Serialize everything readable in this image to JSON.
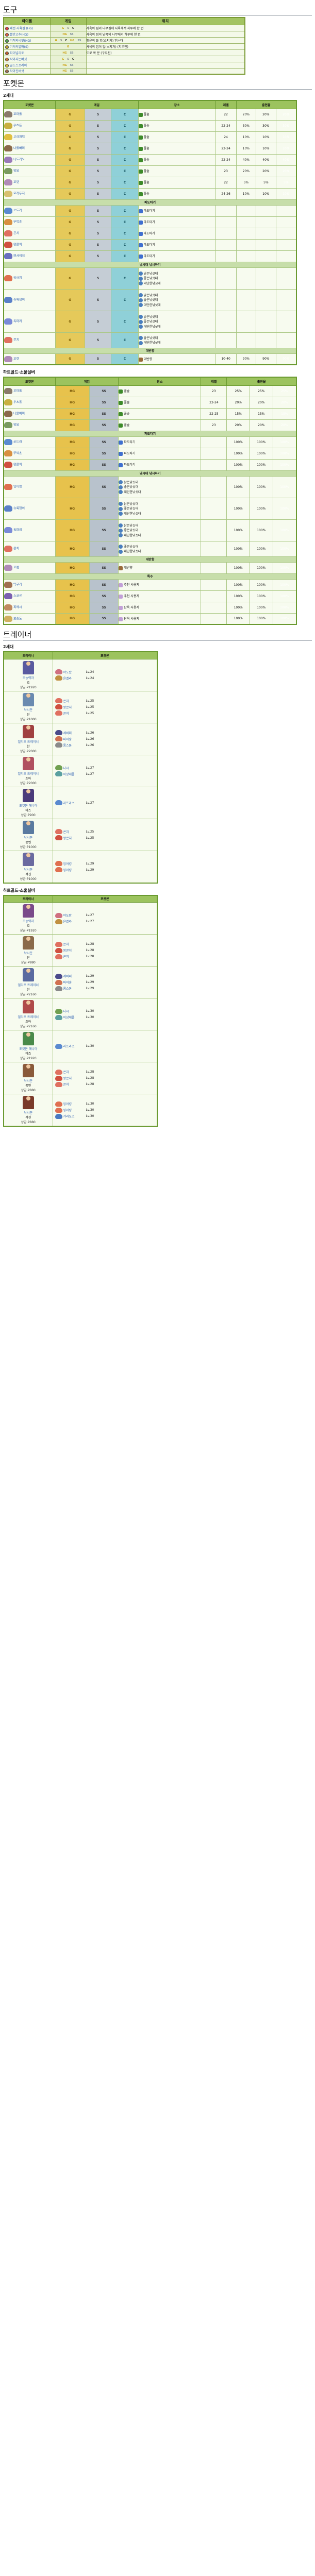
{
  "sections": {
    "items_title": "도구",
    "pokemon_title": "포켓몬",
    "trainers_title": "트레이너",
    "gen2": "2세대",
    "gen4": "하트골드·소울실버"
  },
  "items": {
    "headers": [
      "아이템",
      "게임",
      "위치"
    ],
    "rows": [
      {
        "name": "패턴 사육질 (HG)",
        "games": [
          "G",
          "S",
          "C"
        ],
        "loc": "사육의 집이 나무집에 사육해서 하루에 한 번"
      },
      {
        "name": "빨간고추(HG)",
        "games": [
          "HG",
          "SS"
        ],
        "loc": "사육의 집이 남쪽의 나무에서 하루에 한 번"
      },
      {
        "name": "기적의씨앗(HG)",
        "games": [
          "G",
          "S",
          "C",
          "HG",
          "SS"
        ],
        "loc": "행운의 돌 앞(소지가) 얻는다"
      },
      {
        "name": "기억의열매(S)",
        "games": [
          "G"
        ],
        "loc": "사육의 집이 앞(소지가) (지우진)"
      },
      {
        "name": "파이널리토",
        "games": [
          "HG",
          "SS"
        ],
        "loc": "도로 쪽 문 (구우진)"
      },
      {
        "name": "작아지는버섯",
        "games": [
          "G",
          "S",
          "C"
        ],
        "loc": ""
      },
      {
        "name": "골드스프레이",
        "games": [
          "HG",
          "SS"
        ],
        "loc": ""
      },
      {
        "name": "작아진버섯",
        "games": [
          "HG",
          "SS"
        ],
        "loc": ""
      }
    ]
  },
  "gen2_table": {
    "headers": [
      "포켓몬",
      "게임",
      "",
      "",
      "장소",
      "레벨",
      "출현율"
    ],
    "time_headers": [
      "아침",
      "낮",
      "밤"
    ],
    "rows": [
      {
        "name": "꼬마돌",
        "color": "#8a7a6a",
        "loc": "풀숲",
        "loctype": "grass",
        "lv": "22",
        "rate": "20%"
      },
      {
        "name": "우츠동",
        "color": "#c8b040",
        "loc": "풀숲",
        "loctype": "grass",
        "lv": "22-24",
        "rate": "30%"
      },
      {
        "name": "고라파덕",
        "color": "#e0c040",
        "loc": "풀숲",
        "loctype": "grass",
        "lv": "24",
        "rate": "10%"
      },
      {
        "name": "나몰빼미",
        "color": "#8a6a4a",
        "loc": "풀숲",
        "loctype": "grass",
        "lv": "22-24",
        "rate": "10%"
      },
      {
        "name": "니드리노",
        "color": "#9a7ab8",
        "loc": "풀숲",
        "loctype": "grass",
        "lv": "22-24",
        "rate": "40%"
      },
      {
        "name": "암뭉",
        "color": "#7a9a60",
        "loc": "풀숲",
        "loctype": "grass",
        "lv": "23",
        "rate": "20%"
      },
      {
        "name": "꼬렛",
        "color": "#b08ab8",
        "loc": "풀숲",
        "loctype": "grass",
        "lv": "22",
        "rate": "5%"
      },
      {
        "name": "모래두지",
        "color": "#d8c070",
        "loc": "풀숲",
        "loctype": "grass",
        "lv": "24-26",
        "rate": "10%"
      }
    ],
    "section_surf": "파도타기",
    "surf_rows": [
      {
        "name": "쏘드라",
        "color": "#5a8ad0",
        "loc": "파도타기"
      },
      {
        "name": "뚜벅쵸",
        "color": "#d89040",
        "loc": "파도타기"
      },
      {
        "name": "콘치",
        "color": "#e07060",
        "loc": "파도타기"
      },
      {
        "name": "왕콘치",
        "color": "#d05040",
        "loc": "파도타기"
      },
      {
        "name": "쁘사이저",
        "color": "#6a70c0",
        "loc": "파도타기"
      }
    ],
    "section_fish": "낚시대 낚시하기",
    "fish_rows": [
      {
        "name": "잉어킹",
        "color": "#e07050",
        "locs": [
          "낡은낚싯대",
          "좋은낚싯대",
          "대단한낚싯대"
        ]
      },
      {
        "name": "슈륙챙이",
        "color": "#5a80c8",
        "locs": [
          "낡은낚싯대",
          "좋은낚싯대",
          "대단한낚싯대"
        ]
      },
      {
        "name": "독파리",
        "color": "#7a8ad8",
        "locs": [
          "낡은낚싯대",
          "좋은낚싯대",
          "대단한낚싯대"
        ]
      },
      {
        "name": "콘치",
        "color": "#e07060",
        "locs": [
          "좋은낚싯대",
          "대단한낚싯대"
        ]
      }
    ],
    "section_head": "대반향",
    "head_rows": [
      {
        "name": "꼬렛",
        "color": "#b08ab8",
        "loc": "대반향",
        "lv": "10-40",
        "rate": "90%"
      }
    ]
  },
  "gen4_table": {
    "headers": [
      "포켓몬",
      "게임",
      "",
      "장소",
      "레벨",
      "출현율"
    ],
    "rows": [
      {
        "name": "꼬마돌",
        "color": "#8a7a6a",
        "loc": "풀숲",
        "lv": "23",
        "rate": "25%"
      },
      {
        "name": "우츠동",
        "color": "#c8b040",
        "loc": "풀숲",
        "lv": "22-24",
        "rate": "20%"
      },
      {
        "name": "나몰빼미",
        "color": "#8a6a4a",
        "loc": "풀숲",
        "lv": "22-25",
        "rate": "15%"
      },
      {
        "name": "암뭉",
        "color": "#7a9a60",
        "loc": "풀숲",
        "lv": "23",
        "rate": "20%"
      }
    ],
    "surf_rows": [
      {
        "name": "쏘드라",
        "color": "#5a8ad0",
        "rate": "100%"
      },
      {
        "name": "뚜벅쵸",
        "color": "#d89040",
        "rate": "100%"
      },
      {
        "name": "왕콘치",
        "color": "#d05040",
        "rate": "100%"
      }
    ],
    "fish_rows": [
      {
        "name": "잉어킹",
        "color": "#e07050",
        "rate": "100%"
      },
      {
        "name": "슈륙챙이",
        "color": "#5a80c8",
        "rate": "100%"
      },
      {
        "name": "독파리",
        "color": "#7a8ad8",
        "rate": "100%"
      },
      {
        "name": "콘치",
        "color": "#e07060",
        "rate": "100%"
      }
    ],
    "head_rows": [
      {
        "name": "꼬렛",
        "color": "#b08ab8",
        "rate": "100%"
      }
    ],
    "section_swarm": "특수",
    "swarm_rows": [
      {
        "name": "딱구리",
        "color": "#a07050",
        "loc": "추천 사용지",
        "rate": "100%"
      },
      {
        "name": "스코르",
        "color": "#7a60b0",
        "loc": "추천 사용지",
        "rate": "100%"
      },
      {
        "name": "피에시",
        "color": "#c08a60",
        "loc": "단옥 사용지",
        "rate": "100%"
      },
      {
        "name": "보송도",
        "color": "#d0b060",
        "loc": "단옥 사용지",
        "rate": "100%"
      }
    ]
  },
  "trainers_g2": {
    "headers": [
      "트레이너",
      "포켓몬"
    ],
    "rows": [
      {
        "class": "조능력자",
        "name": "호",
        "reward": "상금 ₽1920",
        "sprite": "#5a5aa0",
        "team": [
          {
            "n": "야도란",
            "l": "Lv.24",
            "c": "#d07080"
          },
          {
            "n": "윤겔라",
            "l": "Lv.24",
            "c": "#c09040"
          }
        ]
      },
      {
        "class": "낚시꾼",
        "name": "진",
        "reward": "상금 ₽1000",
        "sprite": "#6a8ab0",
        "team": [
          {
            "n": "콘치",
            "l": "Lv.25",
            "c": "#e07060"
          },
          {
            "n": "왕콘치",
            "l": "Lv.25",
            "c": "#d05040"
          },
          {
            "n": "콘치",
            "l": "Lv.25",
            "c": "#e07060"
          }
        ]
      },
      {
        "class": "엘리트 트레이너",
        "name": "한",
        "reward": "상금 ₽2000",
        "sprite": "#a04040",
        "team": [
          {
            "n": "세비퍼",
            "l": "Lv.26",
            "c": "#4a4a8a"
          },
          {
            "n": "파이숭",
            "l": "Lv.26",
            "c": "#d07050"
          },
          {
            "n": "롱스톤",
            "l": "Lv.26",
            "c": "#8a8a8a"
          }
        ]
      },
      {
        "class": "엘리트 트레이너",
        "name": "조아",
        "reward": "상금 ₽2000",
        "sprite": "#b05060",
        "team": [
          {
            "n": "나시",
            "l": "Lv.27",
            "c": "#70a050"
          },
          {
            "n": "이상해풀",
            "l": "Lv.27",
            "c": "#5aa0a0"
          }
        ]
      },
      {
        "class": "포켓몬 매니아",
        "name": "미즈",
        "reward": "상금 ₽900",
        "sprite": "#4a3a7a",
        "team": [
          {
            "n": "라프라스",
            "l": "Lv.27",
            "c": "#5a8ad0"
          }
        ]
      },
      {
        "class": "낚시꾼",
        "name": "종빈",
        "reward": "상금 ₽1000",
        "sprite": "#5a7aa0",
        "team": [
          {
            "n": "콘치",
            "l": "Lv.25",
            "c": "#e07060"
          },
          {
            "n": "왕콘치",
            "l": "Lv.25",
            "c": "#d05040"
          }
        ]
      },
      {
        "class": "낚시꾼",
        "name": "석진",
        "reward": "상금 ₽1000",
        "sprite": "#6a6aa0",
        "team": [
          {
            "n": "잉어킹",
            "l": "Lv.29",
            "c": "#e07050"
          },
          {
            "n": "잉어킹",
            "l": "Lv.29",
            "c": "#e07050"
          }
        ]
      }
    ]
  },
  "trainers_g4": {
    "headers": [
      "트레이너",
      "포켓몬"
    ],
    "rows": [
      {
        "class": "초능력자",
        "name": "호",
        "reward": "상금 ₽1920",
        "sprite": "#7a4a8a",
        "team": [
          {
            "n": "야도란",
            "l": "Lv.27",
            "c": "#d07080"
          },
          {
            "n": "윤겔라",
            "l": "Lv.27",
            "c": "#c09040"
          }
        ]
      },
      {
        "class": "낚시꾼",
        "name": "진",
        "reward": "상금 ₽880",
        "sprite": "#8a6a4a",
        "team": [
          {
            "n": "콘치",
            "l": "Lv.28",
            "c": "#e07060"
          },
          {
            "n": "왕콘치",
            "l": "Lv.28",
            "c": "#d05040"
          },
          {
            "n": "콘치",
            "l": "Lv.28",
            "c": "#e07060"
          }
        ]
      },
      {
        "class": "엘리트 트레이너",
        "name": "한",
        "reward": "상금 ₽2160",
        "sprite": "#5a6aa0",
        "team": [
          {
            "n": "세비퍼",
            "l": "Lv.29",
            "c": "#4a4a8a"
          },
          {
            "n": "파이숭",
            "l": "Lv.29",
            "c": "#d07050"
          },
          {
            "n": "롱스톤",
            "l": "Lv.29",
            "c": "#8a8a8a"
          }
        ]
      },
      {
        "class": "엘리트 트레이너",
        "name": "조아",
        "reward": "상금 ₽2160",
        "sprite": "#b04a4a",
        "team": [
          {
            "n": "나시",
            "l": "Lv.30",
            "c": "#70a050"
          },
          {
            "n": "이상해풀",
            "l": "Lv.30",
            "c": "#5aa0a0"
          }
        ]
      },
      {
        "class": "포켓몬 매니아",
        "name": "미즈",
        "reward": "상금 ₽1920",
        "sprite": "#4a8a4a",
        "team": [
          {
            "n": "라프라스",
            "l": "Lv.30",
            "c": "#5a8ad0"
          }
        ]
      },
      {
        "class": "낚시꾼",
        "name": "종빈",
        "reward": "상금 ₽880",
        "sprite": "#8a5a3a",
        "team": [
          {
            "n": "콘치",
            "l": "Lv.28",
            "c": "#e07060"
          },
          {
            "n": "왕콘치",
            "l": "Lv.28",
            "c": "#d05040"
          },
          {
            "n": "콘치",
            "l": "Lv.28",
            "c": "#e07060"
          }
        ]
      },
      {
        "class": "낚시꾼",
        "name": "석진",
        "reward": "상금 ₽880",
        "sprite": "#7a3a2a",
        "team": [
          {
            "n": "잉어킹",
            "l": "Lv.30",
            "c": "#e07050"
          },
          {
            "n": "잉어킹",
            "l": "Lv.30",
            "c": "#e07050"
          },
          {
            "n": "갸라도스",
            "l": "Lv.30",
            "c": "#4a7ac0"
          }
        ]
      }
    ]
  },
  "labels": {
    "gender": "♂ 2 5 6"
  }
}
